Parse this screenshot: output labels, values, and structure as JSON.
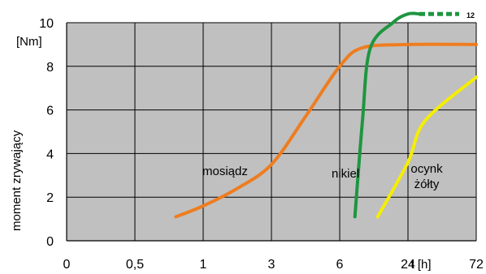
{
  "chart_data": {
    "type": "line",
    "title": "",
    "ylabel": "moment zrywający",
    "yunit": "[Nm]",
    "xlabel": "t [h]",
    "x_ticks": [
      "0",
      "0,5",
      "1",
      "3",
      "6",
      "24",
      "72"
    ],
    "y_ticks": [
      "0",
      "2",
      "4",
      "6",
      "8",
      "10"
    ],
    "ylim": [
      0,
      10
    ],
    "grid": true,
    "background": "#c0c0c0",
    "overflow_label": "12",
    "series": [
      {
        "name": "mosiądz",
        "color": "#ee7d20",
        "points": [
          [
            0.8,
            1.1
          ],
          [
            1.0,
            1.6
          ],
          [
            2.0,
            2.4
          ],
          [
            3.0,
            3.5
          ],
          [
            4.5,
            5.7
          ],
          [
            6.0,
            8.0
          ],
          [
            12.0,
            8.85
          ],
          [
            24.0,
            9.0
          ],
          [
            72.0,
            9.0
          ]
        ]
      },
      {
        "name": "nikiel",
        "color": "#1e9640",
        "points": [
          [
            10.0,
            1.1
          ],
          [
            12.0,
            5.5
          ],
          [
            14.0,
            8.8
          ],
          [
            20.0,
            10.0
          ],
          [
            24.0,
            10.4
          ],
          [
            32.0,
            10.4
          ]
        ],
        "dashed_continuation": [
          [
            32.0,
            10.4
          ],
          [
            60.0,
            10.4
          ]
        ]
      },
      {
        "name": "ocynk żółty",
        "label_lines": [
          "ocynk",
          "żółty"
        ],
        "color": "#f5ee00",
        "points": [
          [
            16.0,
            1.1
          ],
          [
            24.0,
            3.6
          ],
          [
            36.0,
            5.5
          ],
          [
            72.0,
            7.5
          ]
        ]
      }
    ]
  }
}
